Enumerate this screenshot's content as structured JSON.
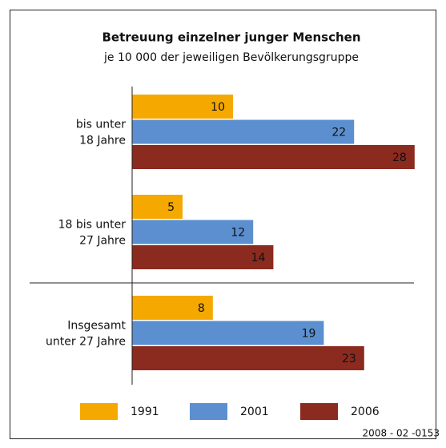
{
  "chart_data": {
    "type": "hbar",
    "title": "Betreuung einzelner junger Menschen",
    "subtitle": "je 10 000 der jeweiligen Bevölkerungsgruppe",
    "categories": [
      "bis unter\n18 Jahre",
      "18 bis unter\n27 Jahre",
      "Insgesamt\nunter 27 Jahre"
    ],
    "series": [
      {
        "name": "1991",
        "color": "#f5a800",
        "values": [
          10,
          5,
          8
        ]
      },
      {
        "name": "2001",
        "color": "#5b8fd0",
        "values": [
          22,
          12,
          19
        ]
      },
      {
        "name": "2006",
        "color": "#8b2a1f",
        "values": [
          28,
          14,
          23
        ]
      }
    ],
    "xlim": [
      0,
      30
    ],
    "footnote": "2008 - 02 -0153"
  }
}
